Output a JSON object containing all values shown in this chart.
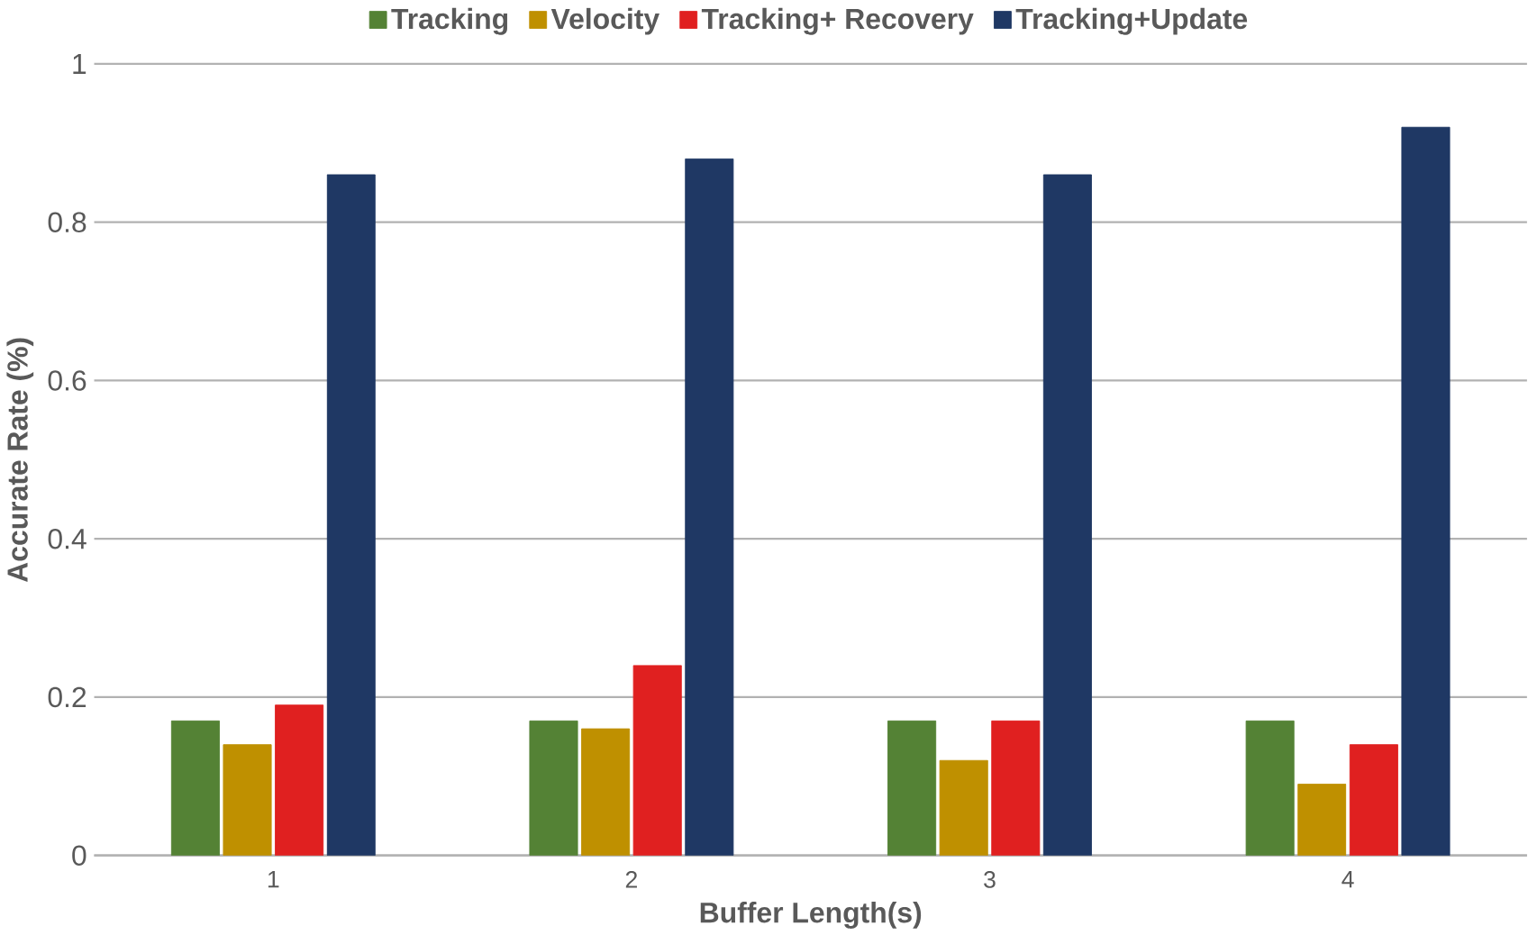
{
  "chart_data": {
    "type": "bar",
    "xlabel": "Buffer Length(s)",
    "ylabel": "Accurate Rate (%)",
    "categories": [
      "1",
      "2",
      "3",
      "4"
    ],
    "series": [
      {
        "name": "Tracking",
        "color": "#548235",
        "values": [
          0.17,
          0.17,
          0.17,
          0.17
        ]
      },
      {
        "name": "Velocity",
        "color": "#bf9000",
        "values": [
          0.14,
          0.16,
          0.12,
          0.09
        ]
      },
      {
        "name": "Tracking+ Recovery",
        "color": "#e02020",
        "values": [
          0.19,
          0.24,
          0.17,
          0.14
        ]
      },
      {
        "name": "Tracking+Update",
        "color": "#1f3864",
        "values": [
          0.86,
          0.88,
          0.86,
          0.92
        ]
      }
    ],
    "ylim": [
      0,
      1
    ],
    "yticks": [
      0,
      0.2,
      0.4,
      0.6,
      0.8,
      1
    ],
    "grid": "y",
    "legend": "top"
  }
}
